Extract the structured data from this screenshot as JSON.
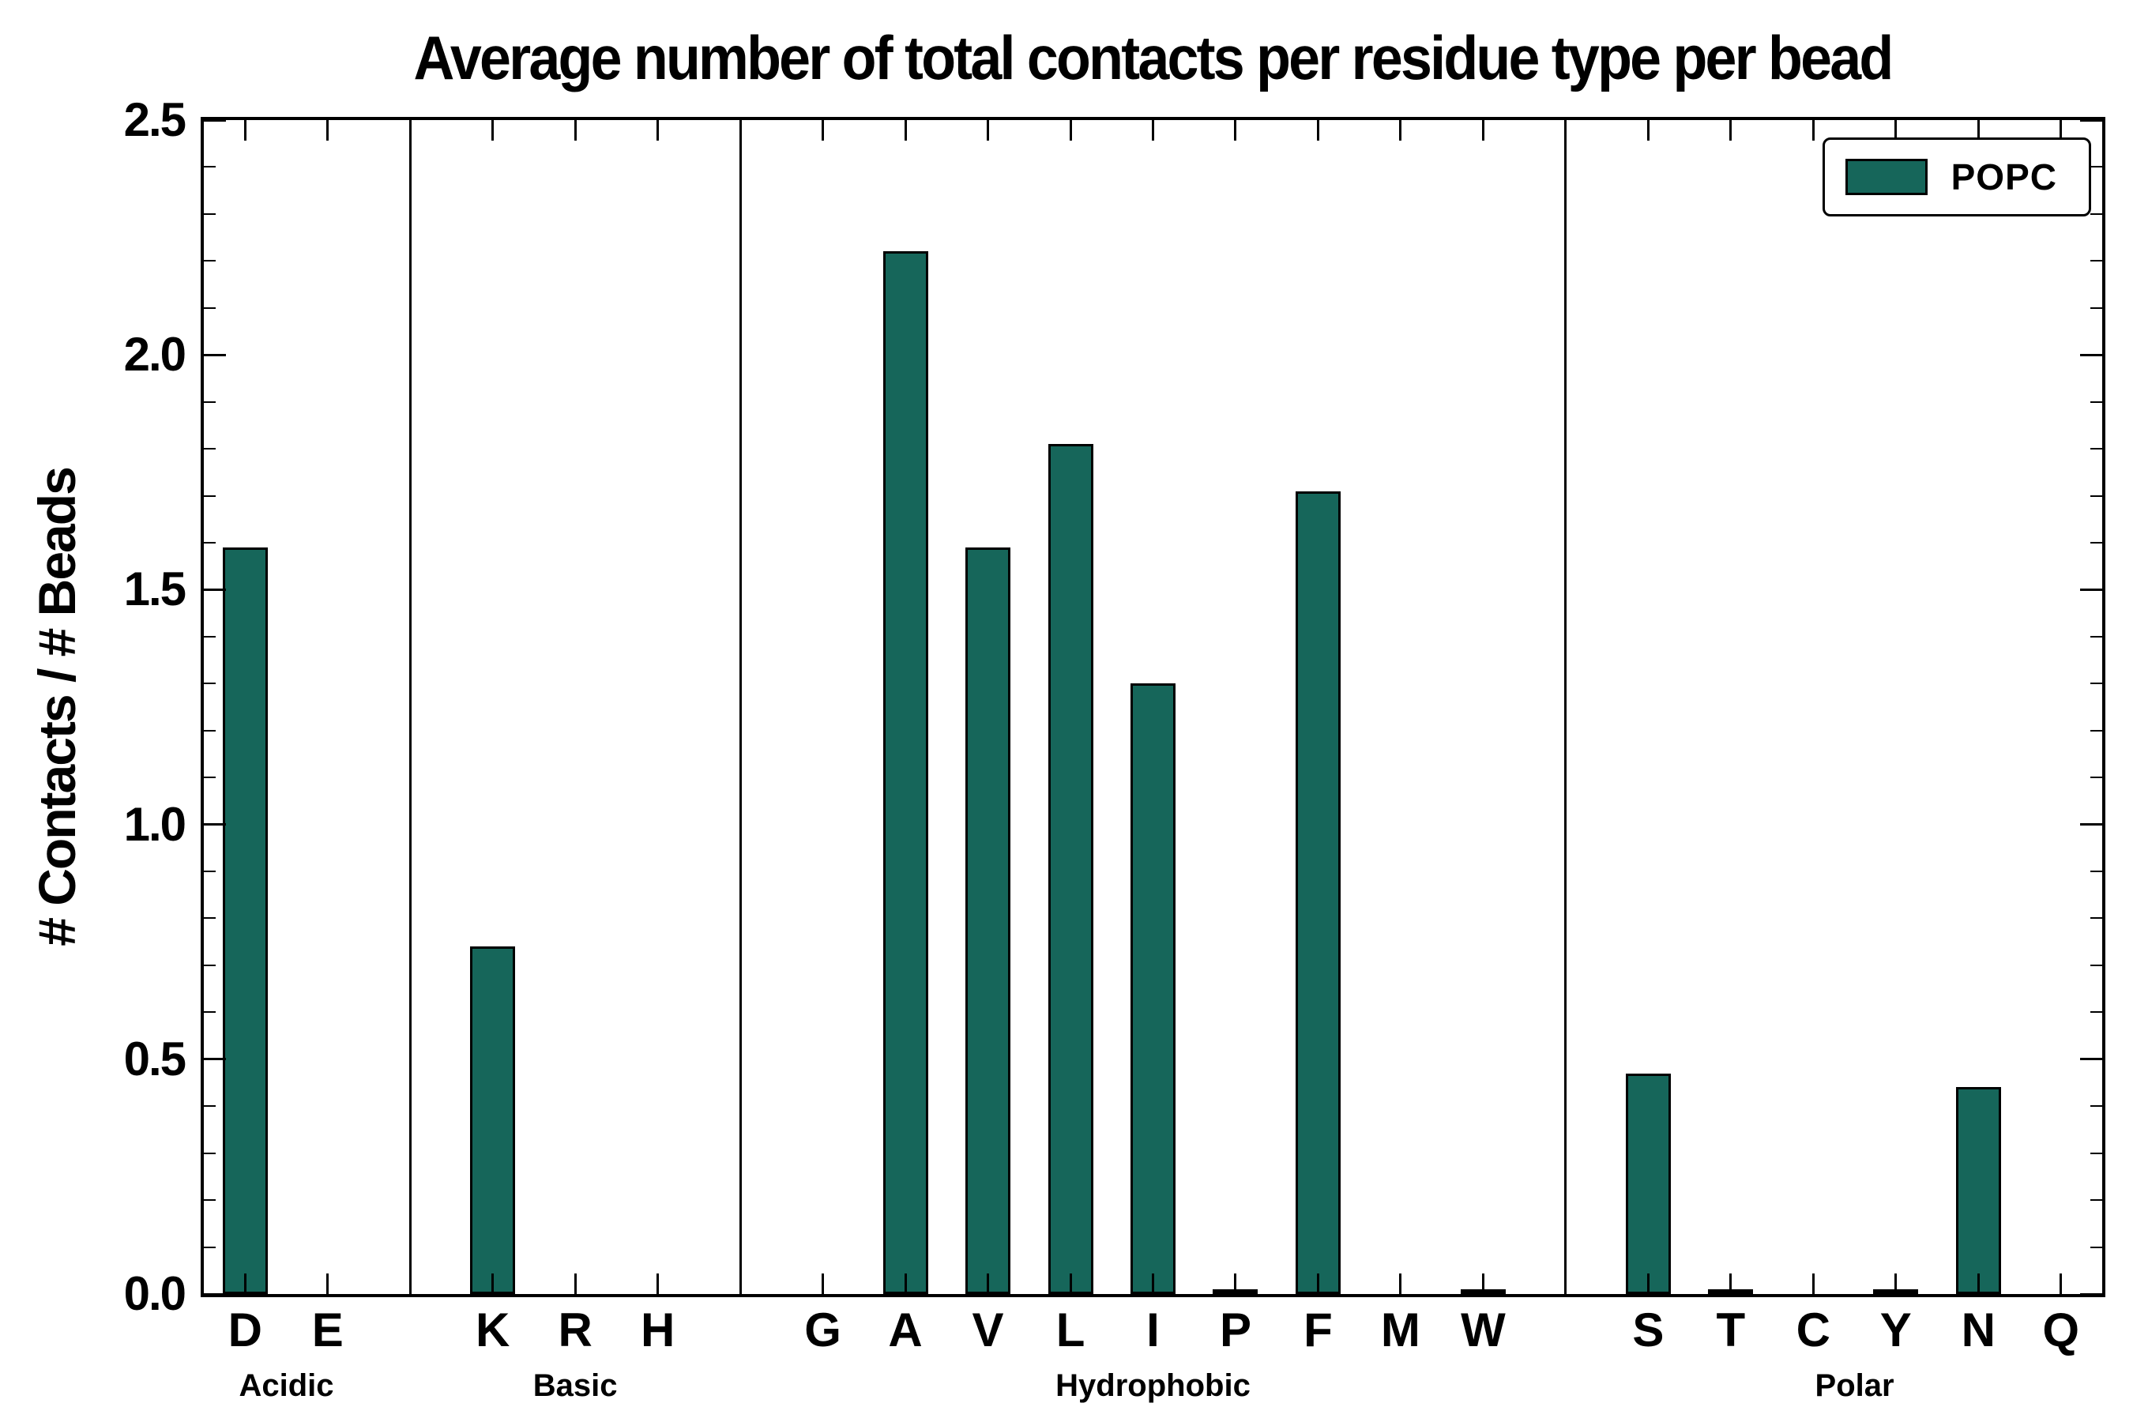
{
  "chart_data": {
    "type": "bar",
    "title": "Average number of total contacts per residue type per bead",
    "xlabel": "",
    "ylabel": "# Contacts / # Beads",
    "ylim": [
      0,
      2.5
    ],
    "yticks": [
      0.0,
      0.5,
      1.0,
      1.5,
      2.0,
      2.5
    ],
    "ytick_minor_step": 0.1,
    "grid": false,
    "bar_color": "#16665a",
    "bar_edge_color": "#000000",
    "legend": {
      "label": "POPC",
      "position": "upper right"
    },
    "group_separators": true,
    "groups": [
      {
        "label": "Acidic",
        "categories": [
          "D",
          "E"
        ],
        "values": [
          1.59,
          0.0
        ]
      },
      {
        "label": "Basic",
        "categories": [
          "K",
          "R",
          "H"
        ],
        "values": [
          0.74,
          0.0,
          0.0
        ]
      },
      {
        "label": "Hydrophobic",
        "categories": [
          "G",
          "A",
          "V",
          "L",
          "I",
          "P",
          "F",
          "M",
          "W"
        ],
        "values": [
          0.0,
          2.22,
          1.59,
          1.81,
          1.3,
          0.01,
          1.71,
          0.0,
          0.01
        ]
      },
      {
        "label": "Polar",
        "categories": [
          "S",
          "T",
          "C",
          "Y",
          "N",
          "Q"
        ],
        "values": [
          0.47,
          0.01,
          0.0,
          0.01,
          0.44,
          0.0
        ]
      }
    ]
  }
}
